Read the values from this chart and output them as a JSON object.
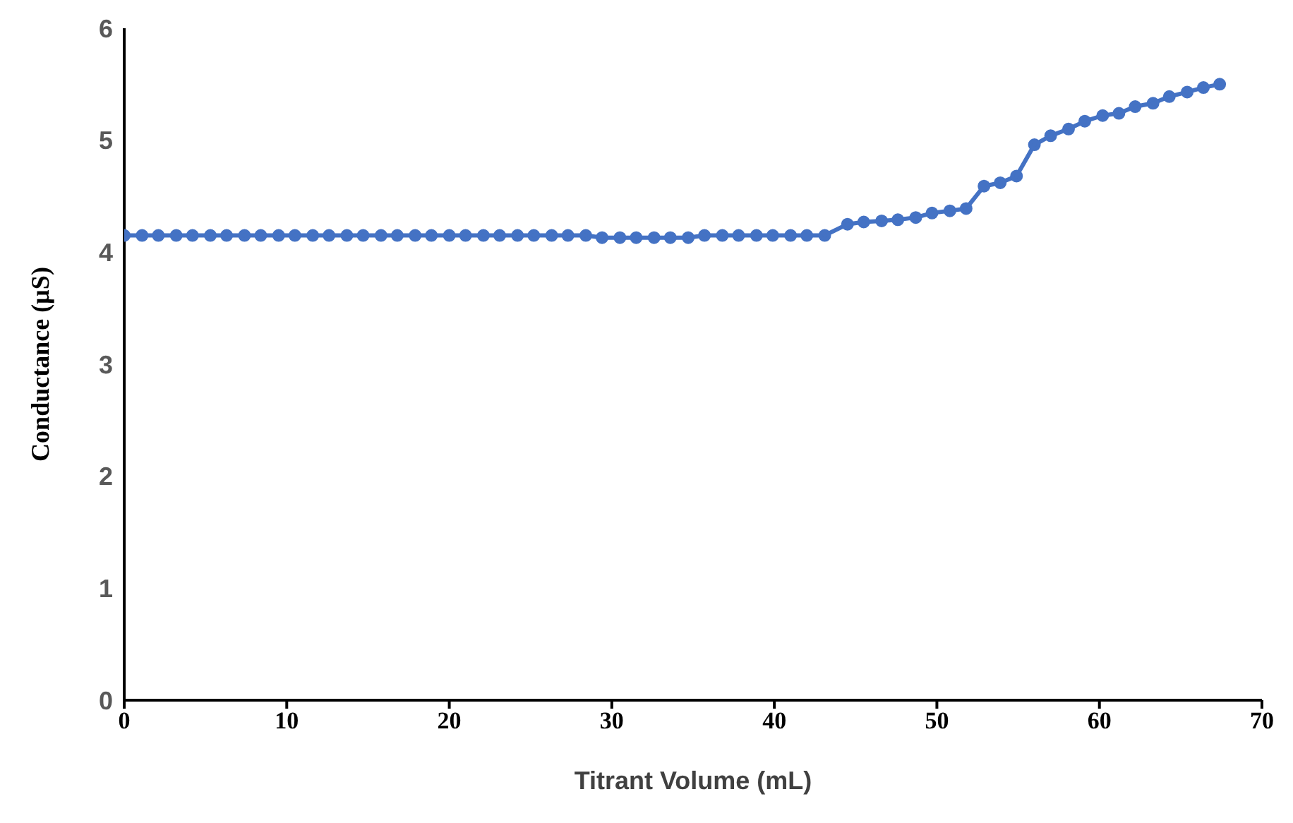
{
  "chart_data": {
    "type": "line",
    "xlabel": "Titrant Volume (mL)",
    "ylabel": "Conductance (µS)",
    "x": [
      0,
      1.1,
      2.1,
      3.2,
      4.2,
      5.3,
      6.3,
      7.4,
      8.4,
      9.5,
      10.5,
      11.6,
      12.6,
      13.7,
      14.7,
      15.8,
      16.8,
      17.9,
      18.9,
      20,
      21,
      22.1,
      23.1,
      24.2,
      25.2,
      26.3,
      27.3,
      28.4,
      29.4,
      30.5,
      31.5,
      32.6,
      33.6,
      34.7,
      35.7,
      36.8,
      37.8,
      38.9,
      39.9,
      41,
      42,
      43.1,
      44.5,
      45.5,
      46.6,
      47.6,
      48.7,
      49.7,
      50.8,
      51.8,
      52.9,
      53.9,
      54.9,
      56,
      57,
      58.1,
      59.1,
      60.2,
      61.2,
      62.2,
      63.3,
      64.3,
      65.4,
      66.4,
      67.4
    ],
    "series": [
      {
        "color": "#4472c4",
        "values": [
          4.15,
          4.15,
          4.15,
          4.15,
          4.15,
          4.15,
          4.15,
          4.15,
          4.15,
          4.15,
          4.15,
          4.15,
          4.15,
          4.15,
          4.15,
          4.15,
          4.15,
          4.15,
          4.15,
          4.15,
          4.15,
          4.15,
          4.15,
          4.15,
          4.15,
          4.15,
          4.15,
          4.15,
          4.13,
          4.13,
          4.13,
          4.13,
          4.13,
          4.13,
          4.15,
          4.15,
          4.15,
          4.15,
          4.15,
          4.15,
          4.15,
          4.15,
          4.25,
          4.27,
          4.28,
          4.29,
          4.31,
          4.35,
          4.37,
          4.39,
          4.59,
          4.62,
          4.68,
          4.96,
          5.04,
          5.1,
          5.17,
          5.22,
          5.24,
          5.3,
          5.33,
          5.39,
          5.43,
          5.47,
          5.5
        ]
      }
    ],
    "xlim": [
      0,
      70
    ],
    "xticks": [
      0,
      10,
      20,
      30,
      40,
      50,
      60,
      70
    ],
    "ylim": [
      0,
      6
    ],
    "yticks": [
      0,
      1,
      2,
      3,
      4,
      5,
      6
    ],
    "grid": false,
    "legend": false,
    "marker": "circle",
    "line_style": "solid"
  }
}
